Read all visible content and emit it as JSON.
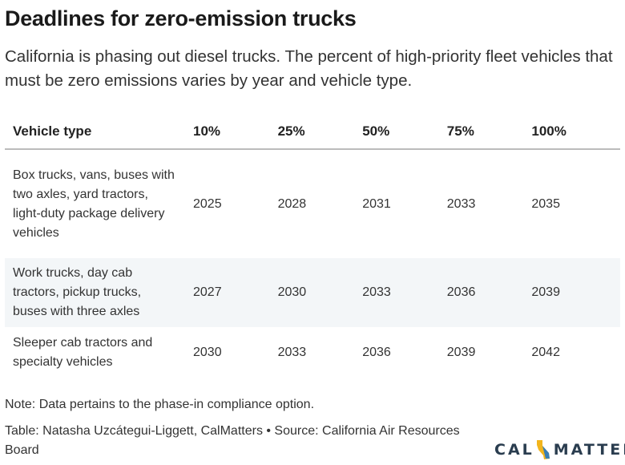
{
  "title": "Deadlines for zero-emission trucks",
  "subtitle": "California is phasing out diesel trucks. The percent of high-priority fleet vehicles that must be zero emissions varies by year and vehicle type.",
  "table": {
    "headers": [
      "Vehicle type",
      "10%",
      "25%",
      "50%",
      "75%",
      "100%"
    ],
    "rows": [
      {
        "type": "Box trucks, vans, buses with two axles, yard tractors, light-duty package delivery vehicles",
        "values": [
          "2025",
          "2028",
          "2031",
          "2033",
          "2035"
        ]
      },
      {
        "type": "Work trucks, day cab tractors, pickup trucks, buses with three axles",
        "values": [
          "2027",
          "2030",
          "2033",
          "2036",
          "2039"
        ]
      },
      {
        "type": "Sleeper cab tractors and specialty vehicles",
        "values": [
          "2030",
          "2033",
          "2036",
          "2039",
          "2042"
        ]
      }
    ]
  },
  "note": "Note: Data pertains to the phase-in compliance option.",
  "credit": "Table: Natasha Uzcátegui-Liggett, CalMatters • Source: California Air Resources Board",
  "logo": {
    "left_text": "CAL",
    "right_text": "MATTERS",
    "icon": "california-state-icon",
    "icon_colors": [
      "#f2b51d",
      "#3a7fb5"
    ]
  }
}
